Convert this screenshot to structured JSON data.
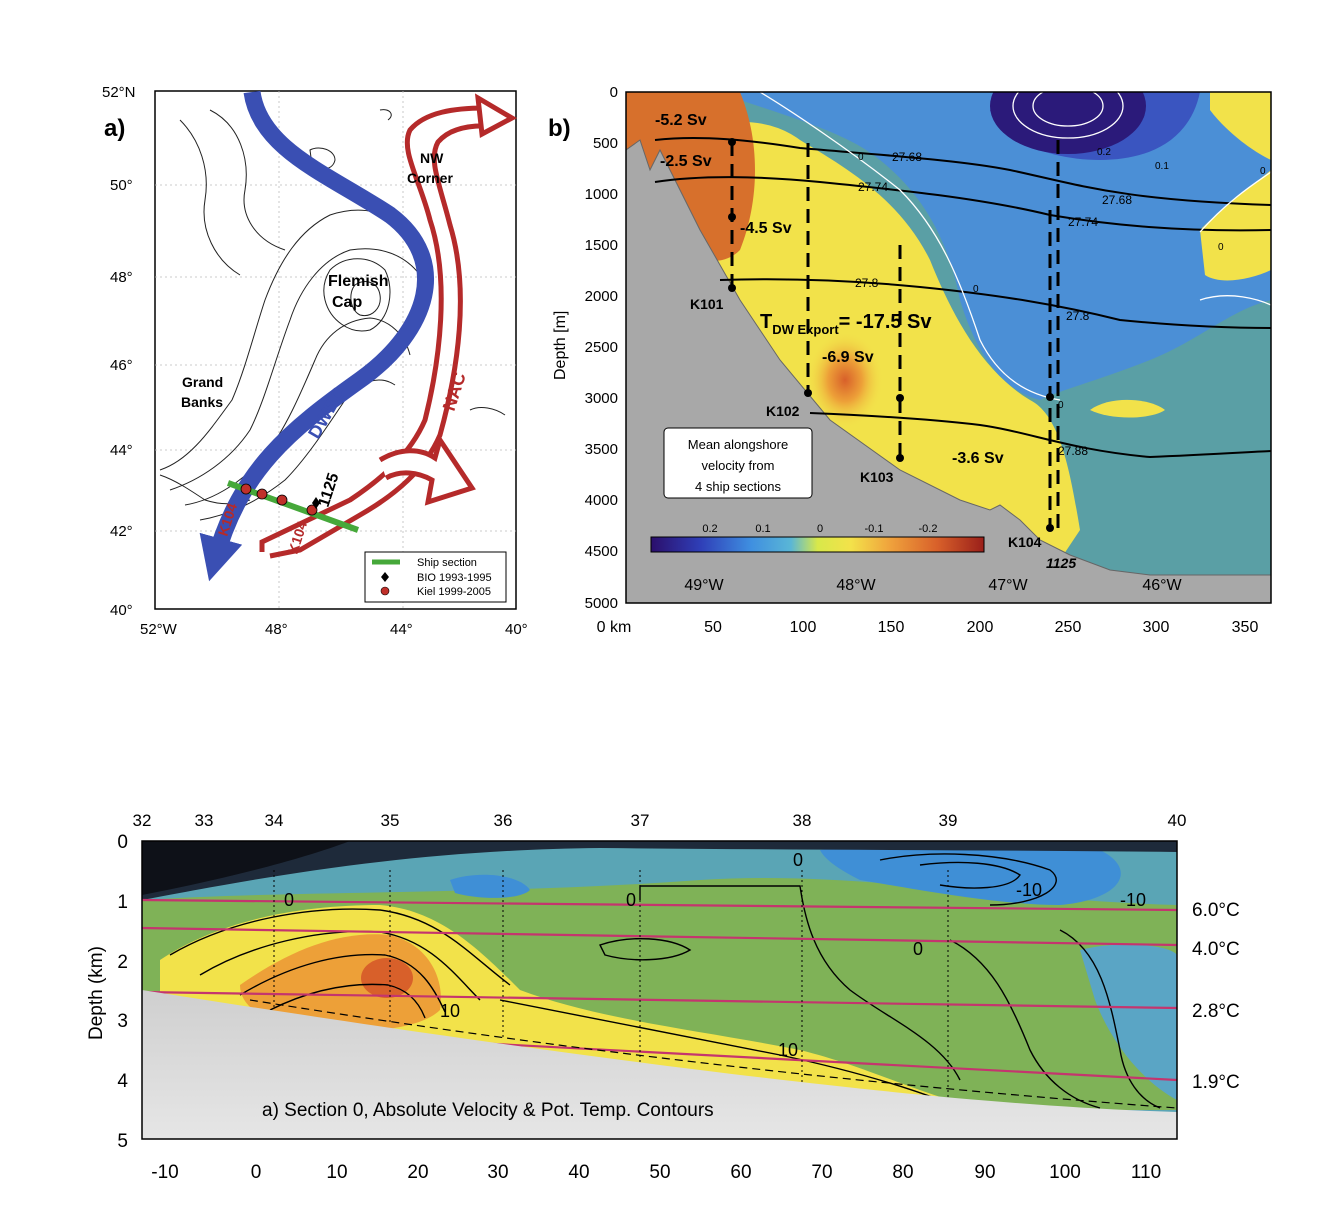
{
  "panel_a": {
    "label": "a)",
    "lat_ticks": [
      "52°N",
      "50°",
      "48°",
      "46°",
      "44°",
      "42°",
      "40°"
    ],
    "lon_ticks": [
      "52°W",
      "48°",
      "44°",
      "40°"
    ],
    "labels": {
      "nw_corner_1": "NW",
      "nw_corner_2": "Corner",
      "flemish_1": "Flemish",
      "flemish_2": "Cap",
      "grand_banks_1": "Grand",
      "grand_banks_2": "Banks",
      "dwbc": "DWBC",
      "nac": "NAC",
      "k104_a": "K104",
      "k104_b": "K104",
      "mooring_1125": "1125"
    },
    "legend": [
      "Ship section",
      "BIO 1993-1995",
      "Kiel 1999-2005"
    ],
    "colors": {
      "dwbc": "#3a4fb3",
      "nac": "#b52a2a",
      "ship_section": "#46a83a",
      "kiel": "#c0302a",
      "bio": "#000000"
    }
  },
  "panel_b": {
    "label": "b)",
    "ylabel": "Depth [m]",
    "depth_ticks": [
      "0",
      "500",
      "1000",
      "1500",
      "2000",
      "2500",
      "3000",
      "3500",
      "4000",
      "4500",
      "5000"
    ],
    "km_ticks": [
      "0 km",
      "50",
      "100",
      "150",
      "200",
      "250",
      "300",
      "350"
    ],
    "lon_ticks": [
      "49°W",
      "48°W",
      "47°W",
      "46°W"
    ],
    "transports": [
      "-5.2 Sv",
      "-2.5 Sv",
      "-4.5 Sv",
      "-6.9 Sv",
      "-3.6 Sv"
    ],
    "export_main": "T",
    "export_sub": "DW Export",
    "export_value": "= -17.5 Sv",
    "moorings": [
      "K101",
      "K102",
      "K103",
      "K104",
      "1125"
    ],
    "isopycnals": [
      "27.68",
      "27.74",
      "27.68",
      "27.74",
      "27.8",
      "27.8",
      "27.88"
    ],
    "contour_labels": [
      "0",
      "0.2",
      "0.1",
      "0",
      "0",
      "0",
      "0"
    ],
    "box_text": [
      "Mean alongshore",
      "velocity from",
      "4 ship sections"
    ],
    "colorbar_ticks": [
      "0.2",
      "0.1",
      "0",
      "-0.1",
      "-0.2"
    ]
  },
  "panel_c": {
    "ylabel": "Depth (km)",
    "depth_ticks": [
      "0",
      "1",
      "2",
      "3",
      "4",
      "5"
    ],
    "top_ticks": [
      "32",
      "33",
      "34",
      "35",
      "36",
      "37",
      "38",
      "39",
      "40"
    ],
    "bottom_ticks": [
      "-10",
      "0",
      "10",
      "20",
      "30",
      "40",
      "50",
      "60",
      "70",
      "80",
      "90",
      "100",
      "110"
    ],
    "temps": [
      "6.0°C",
      "4.0°C",
      "2.8°C",
      "1.9°C"
    ],
    "contour_labels": [
      "0",
      "0",
      "0",
      "0",
      "-10",
      "-10",
      "10",
      "10"
    ],
    "caption": "a) Section 0, Absolute Velocity & Pot. Temp. Contours"
  }
}
